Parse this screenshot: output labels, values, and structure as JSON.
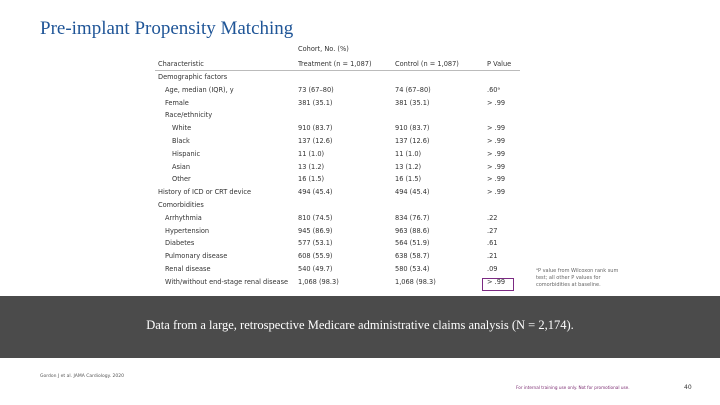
{
  "header": {
    "title": "Pre-implant Propensity Matching"
  },
  "table": {
    "group_label": "Cohort, No. (%)",
    "columns": [
      "Characteristic",
      "Treatment (n = 1,087)",
      "Control (n = 1,087)",
      "P Value"
    ],
    "rows": [
      {
        "label": "Demographic factors",
        "rows": [
          {
            "cells": [
              "Age, median (IQR), y",
              "73 (67–80)",
              "74 (67–80)",
              ".60ᵃ"
            ]
          },
          {
            "cells": [
              "Female",
              "381 (35.1)",
              "381 (35.1)",
              "> .99"
            ]
          },
          {
            "label": "Race/ethnicity",
            "rows": [
              {
                "cells": [
                  "White",
                  "910 (83.7)",
                  "910 (83.7)",
                  "> .99"
                ]
              },
              {
                "cells": [
                  "Black",
                  "137 (12.6)",
                  "137 (12.6)",
                  "> .99"
                ]
              },
              {
                "cells": [
                  "Hispanic",
                  "11 (1.0)",
                  "11 (1.0)",
                  "> .99"
                ]
              },
              {
                "cells": [
                  "Asian",
                  "13 (1.2)",
                  "13 (1.2)",
                  "> .99"
                ]
              },
              {
                "cells": [
                  "Other",
                  "16 (1.5)",
                  "16 (1.5)",
                  "> .99"
                ]
              }
            ]
          }
        ]
      },
      {
        "cells": [
          "History of ICD or CRT device",
          "494 (45.4)",
          "494 (45.4)",
          "> .99"
        ]
      },
      {
        "label": "Comorbidities",
        "rows": [
          {
            "cells": [
              "Arrhythmia",
              "810 (74.5)",
              "834 (76.7)",
              ".22"
            ]
          },
          {
            "cells": [
              "Hypertension",
              "945 (86.9)",
              "963 (88.6)",
              ".27"
            ]
          },
          {
            "cells": [
              "Diabetes",
              "577 (53.1)",
              "564 (51.9)",
              ".61"
            ]
          },
          {
            "cells": [
              "Pulmonary disease",
              "608 (55.9)",
              "638 (58.7)",
              ".21"
            ]
          },
          {
            "cells": [
              "Renal disease",
              "540 (49.7)",
              "580 (53.4)",
              ".09"
            ]
          },
          {
            "cells": [
              "With/without end-stage renal disease",
              "1,068 (98.3)",
              "1,068 (98.3)",
              "> .99"
            ]
          }
        ]
      }
    ]
  },
  "note": "ᵃP value from Wilcoxon rank sum test; all other P values for comorbidities at baseline.",
  "banner": "Data from a large, retrospective Medicare administrative claims analysis (N = 2,174).",
  "footer": {
    "citation": "Gordon J et al. JAMA Cardiology. 2020",
    "legal": "For internal training use only. Not for promotional use.",
    "page": "40"
  }
}
